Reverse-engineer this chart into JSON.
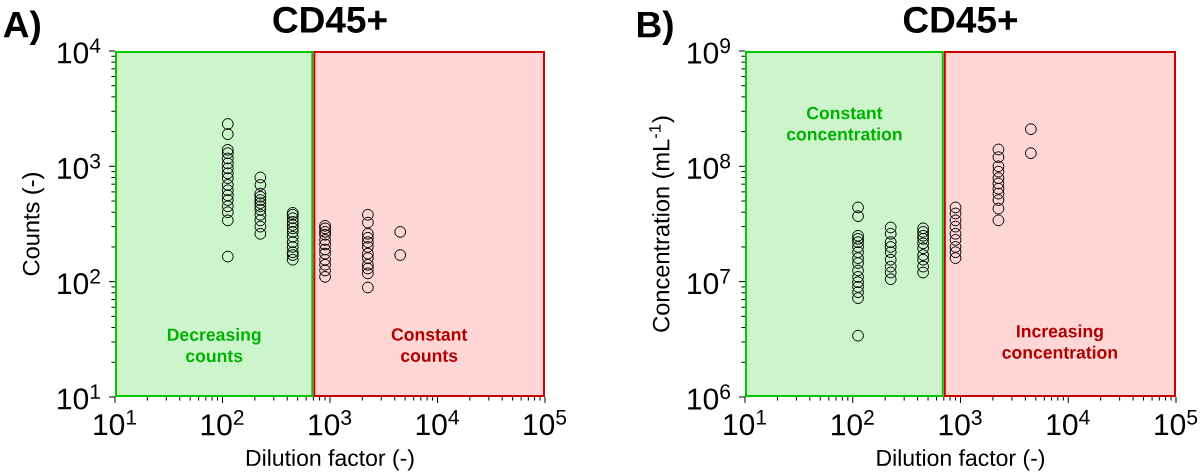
{
  "chart_data": [
    {
      "type": "scatter",
      "title": "CD45+",
      "xlabel": "Dilution factor (-)",
      "ylabel": "Counts (-)",
      "annotations": [
        "A)"
      ],
      "log": "xy",
      "marker": "circle",
      "xlim": [
        10,
        100000
      ],
      "ylim": [
        10,
        10000
      ],
      "xticks": [
        {
          "value": 10,
          "label": "10$^{1}$"
        },
        {
          "value": 100,
          "label": "10$^{2}$"
        },
        {
          "value": 1000,
          "label": "10$^{3}$"
        },
        {
          "value": 10000,
          "label": "10$^{4}$"
        },
        {
          "value": 100000,
          "label": "10$^{5}$"
        }
      ],
      "yticks": [
        {
          "value": 10,
          "label": "10$^{1}$"
        },
        {
          "value": 100,
          "label": "10$^{2}$"
        },
        {
          "value": 1000,
          "label": "10$^{3}$"
        },
        {
          "value": 10000,
          "label": "10$^{4}$"
        }
      ],
      "bands": [
        {
          "axis": "x",
          "from": 10,
          "to": 700,
          "label": "Decreasing counts",
          "color": "#ccf5cc"
        },
        {
          "axis": "x",
          "from": 700,
          "to": 100000,
          "label": "Constant counts",
          "color": "#ffd6d6"
        }
      ],
      "series": [
        {
          "color": "#000000",
          "x": [
            112,
            112,
            112,
            112,
            112,
            112,
            112,
            112,
            112,
            112,
            112,
            112,
            112,
            112,
            112,
            112,
            112,
            225,
            225,
            225,
            225,
            225,
            225,
            225,
            225,
            225,
            225,
            225,
            225,
            450,
            450,
            450,
            450,
            450,
            450,
            450,
            450,
            450,
            450,
            450,
            450,
            450,
            900,
            900,
            900,
            900,
            900,
            900,
            900,
            900,
            900,
            900,
            900,
            900,
            2250,
            2250,
            2250,
            2250,
            2250,
            2250,
            2250,
            2250,
            2250,
            2250,
            2250,
            2250,
            4500,
            4500
          ],
          "values": [
            2330,
            1900,
            1390,
            1300,
            1170,
            1060,
            960,
            870,
            790,
            690,
            620,
            560,
            510,
            450,
            400,
            340,
            165,
            800,
            690,
            580,
            545,
            510,
            480,
            450,
            420,
            380,
            340,
            300,
            260,
            395,
            380,
            355,
            330,
            310,
            290,
            270,
            245,
            220,
            200,
            180,
            170,
            155,
            305,
            290,
            270,
            255,
            230,
            210,
            190,
            175,
            155,
            140,
            125,
            110,
            380,
            325,
            260,
            240,
            220,
            200,
            175,
            160,
            140,
            130,
            118,
            89,
            270,
            170
          ]
        }
      ]
    },
    {
      "type": "scatter",
      "title": "CD45+",
      "xlabel": "Dilution factor (-)",
      "ylabel": "Concentration (mL$^{-1}$)",
      "annotations": [
        "B)"
      ],
      "log": "xy",
      "marker": "circle",
      "xlim": [
        10,
        100000
      ],
      "ylim": [
        1000000,
        1000000000
      ],
      "xticks": [
        {
          "value": 10,
          "label": "10$^{1}$"
        },
        {
          "value": 100,
          "label": "10$^{2}$"
        },
        {
          "value": 1000,
          "label": "10$^{3}$"
        },
        {
          "value": 10000,
          "label": "10$^{4}$"
        },
        {
          "value": 100000,
          "label": "10$^{5}$"
        }
      ],
      "yticks": [
        {
          "value": 1000000,
          "label": "10$^{6}$"
        },
        {
          "value": 10000000,
          "label": "10$^{7}$"
        },
        {
          "value": 100000000,
          "label": "10$^{8}$"
        },
        {
          "value": 1000000000,
          "label": "10$^{9}$"
        }
      ],
      "bands": [
        {
          "axis": "x",
          "from": 10,
          "to": 700,
          "label": "Constant concentration",
          "color": "#ccf5cc"
        },
        {
          "axis": "x",
          "from": 700,
          "to": 100000,
          "label": "Increasing concentration",
          "color": "#ffd6d6"
        }
      ],
      "series": [
        {
          "color": "#000000",
          "x": [
            112,
            112,
            112,
            112,
            112,
            112,
            112,
            112,
            112,
            112,
            112,
            112,
            112,
            112,
            112,
            112,
            225,
            225,
            225,
            225,
            225,
            225,
            225,
            225,
            225,
            450,
            450,
            450,
            450,
            450,
            450,
            450,
            450,
            450,
            450,
            900,
            900,
            900,
            900,
            900,
            900,
            900,
            900,
            900,
            2250,
            2250,
            2250,
            2250,
            2250,
            2250,
            2250,
            2250,
            2250,
            2250,
            2250,
            4500,
            4500
          ],
          "values": [
            44000000,
            37000000,
            25000000,
            23500000,
            22000000,
            20000000,
            18000000,
            16000000,
            14500000,
            12500000,
            11000000,
            9900000,
            9000000,
            8100000,
            7200000,
            3400000,
            29500000,
            26000000,
            22000000,
            20000000,
            18000000,
            15500000,
            13500000,
            12000000,
            10500000,
            29000000,
            27000000,
            25000000,
            23500000,
            21500000,
            19500000,
            17000000,
            15500000,
            13500000,
            12000000,
            44000000,
            39000000,
            34000000,
            30000000,
            26000000,
            23000000,
            20000000,
            18000000,
            16000000,
            140000000,
            120000000,
            100000000,
            90000000,
            79000000,
            71000000,
            64000000,
            58000000,
            51000000,
            43000000,
            34000000,
            210000000,
            130000000
          ]
        }
      ]
    }
  ]
}
